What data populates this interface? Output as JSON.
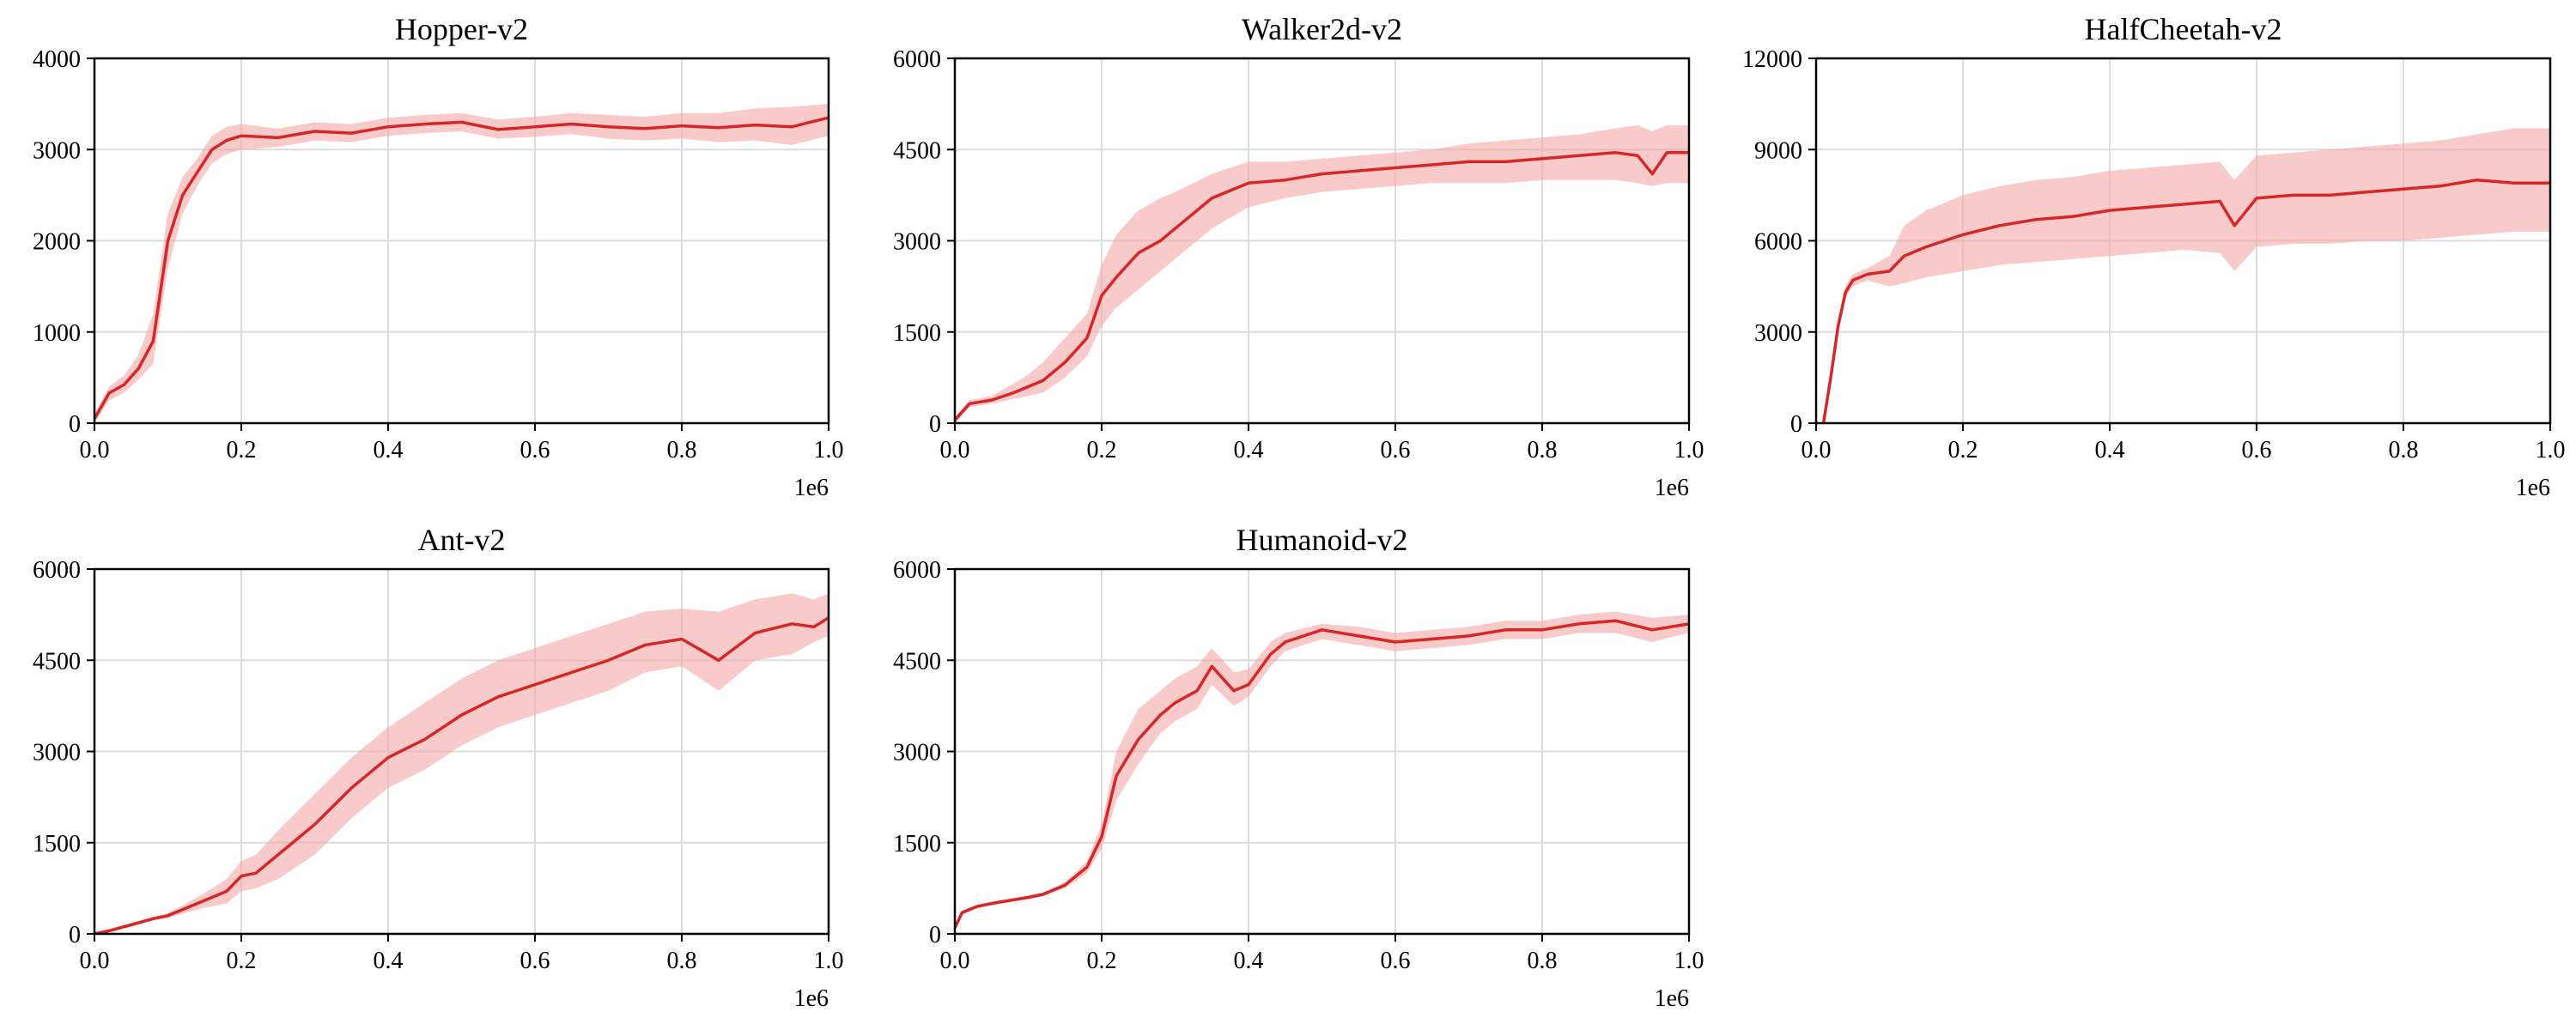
{
  "figure": {
    "line_color": "#d62728",
    "band_color": "#f4a6a6",
    "grid_color": "#dcdcdc"
  },
  "chart_data": [
    {
      "type": "line",
      "title": "Hopper-v2",
      "xlabel": "",
      "ylabel": "",
      "xlim": [
        0,
        1.0
      ],
      "ylim": [
        0,
        4000
      ],
      "xticks": [
        "0.0",
        "0.2",
        "0.4",
        "0.6",
        "0.8",
        "1.0"
      ],
      "yticks": [
        "0",
        "1000",
        "2000",
        "3000",
        "4000"
      ],
      "x_offset_label": "1e6",
      "grid": true,
      "series": [
        {
          "x": [
            0,
            0.02,
            0.04,
            0.06,
            0.08,
            0.1,
            0.12,
            0.14,
            0.16,
            0.18,
            0.2,
            0.25,
            0.3,
            0.35,
            0.4,
            0.45,
            0.5,
            0.55,
            0.6,
            0.65,
            0.7,
            0.75,
            0.8,
            0.85,
            0.9,
            0.95,
            1.0
          ],
          "y": [
            50,
            330,
            420,
            600,
            900,
            2000,
            2500,
            2750,
            3000,
            3100,
            3150,
            3130,
            3200,
            3180,
            3250,
            3280,
            3300,
            3220,
            3250,
            3280,
            3250,
            3230,
            3260,
            3240,
            3270,
            3250,
            3350
          ],
          "lower": [
            0,
            250,
            330,
            480,
            650,
            1700,
            2300,
            2600,
            2850,
            2950,
            3000,
            3030,
            3100,
            3080,
            3150,
            3180,
            3200,
            3120,
            3140,
            3170,
            3120,
            3100,
            3120,
            3080,
            3100,
            3050,
            3150
          ],
          "upper": [
            100,
            400,
            520,
            750,
            1200,
            2300,
            2700,
            2900,
            3150,
            3250,
            3280,
            3230,
            3300,
            3280,
            3350,
            3380,
            3400,
            3330,
            3360,
            3400,
            3380,
            3360,
            3400,
            3400,
            3450,
            3470,
            3500
          ]
        }
      ]
    },
    {
      "type": "line",
      "title": "Walker2d-v2",
      "xlabel": "",
      "ylabel": "",
      "xlim": [
        0,
        1.0
      ],
      "ylim": [
        0,
        6000
      ],
      "xticks": [
        "0.0",
        "0.2",
        "0.4",
        "0.6",
        "0.8",
        "1.0"
      ],
      "yticks": [
        "0",
        "1500",
        "3000",
        "4500",
        "6000"
      ],
      "x_offset_label": "1e6",
      "grid": true,
      "series": [
        {
          "x": [
            0,
            0.02,
            0.05,
            0.08,
            0.1,
            0.12,
            0.15,
            0.18,
            0.2,
            0.22,
            0.25,
            0.28,
            0.3,
            0.35,
            0.4,
            0.45,
            0.5,
            0.55,
            0.6,
            0.65,
            0.7,
            0.75,
            0.8,
            0.85,
            0.9,
            0.93,
            0.95,
            0.97,
            1.0
          ],
          "y": [
            50,
            320,
            380,
            500,
            600,
            700,
            1000,
            1400,
            2100,
            2400,
            2800,
            3000,
            3200,
            3700,
            3950,
            4000,
            4100,
            4150,
            4200,
            4250,
            4300,
            4300,
            4350,
            4400,
            4450,
            4400,
            4100,
            4450,
            4450
          ],
          "lower": [
            0,
            260,
            320,
            400,
            450,
            500,
            750,
            1100,
            1600,
            1900,
            2200,
            2500,
            2700,
            3200,
            3550,
            3700,
            3800,
            3850,
            3900,
            3950,
            3950,
            3950,
            4000,
            4000,
            4000,
            3950,
            3900,
            3950,
            3950
          ],
          "upper": [
            100,
            380,
            450,
            650,
            800,
            1000,
            1400,
            1800,
            2600,
            3100,
            3500,
            3700,
            3800,
            4100,
            4300,
            4300,
            4350,
            4400,
            4450,
            4500,
            4600,
            4650,
            4700,
            4750,
            4850,
            4900,
            4800,
            4900,
            4900
          ]
        }
      ]
    },
    {
      "type": "line",
      "title": "HalfCheetah-v2",
      "xlabel": "",
      "ylabel": "",
      "xlim": [
        0,
        1.0
      ],
      "ylim": [
        0,
        12000
      ],
      "xticks": [
        "0.0",
        "0.2",
        "0.4",
        "0.6",
        "0.8",
        "1.0"
      ],
      "yticks": [
        "0",
        "3000",
        "6000",
        "9000",
        "12000"
      ],
      "x_offset_label": "1e6",
      "grid": true,
      "series": [
        {
          "x": [
            0.01,
            0.02,
            0.03,
            0.04,
            0.05,
            0.07,
            0.1,
            0.12,
            0.15,
            0.2,
            0.25,
            0.3,
            0.35,
            0.4,
            0.45,
            0.5,
            0.55,
            0.57,
            0.6,
            0.65,
            0.7,
            0.75,
            0.8,
            0.85,
            0.9,
            0.95,
            1.0
          ],
          "y": [
            0,
            1500,
            3200,
            4300,
            4700,
            4900,
            5000,
            5500,
            5800,
            6200,
            6500,
            6700,
            6800,
            7000,
            7100,
            7200,
            7300,
            6500,
            7400,
            7500,
            7500,
            7600,
            7700,
            7800,
            8000,
            7900,
            7900
          ],
          "lower": [
            0,
            1300,
            3000,
            4100,
            4500,
            4700,
            4500,
            4600,
            4800,
            5000,
            5200,
            5300,
            5400,
            5500,
            5600,
            5700,
            5600,
            5000,
            5800,
            5900,
            5900,
            6000,
            6000,
            6100,
            6200,
            6300,
            6300
          ],
          "upper": [
            0,
            1700,
            3400,
            4500,
            4900,
            5100,
            5500,
            6500,
            7000,
            7500,
            7800,
            8000,
            8100,
            8300,
            8400,
            8500,
            8600,
            8000,
            8800,
            8900,
            9000,
            9100,
            9200,
            9300,
            9500,
            9700,
            9700
          ]
        }
      ]
    },
    {
      "type": "line",
      "title": "Ant-v2",
      "xlabel": "",
      "ylabel": "",
      "xlim": [
        0,
        1.0
      ],
      "ylim": [
        0,
        6000
      ],
      "xticks": [
        "0.0",
        "0.2",
        "0.4",
        "0.6",
        "0.8",
        "1.0"
      ],
      "yticks": [
        "0",
        "1500",
        "3000",
        "4500",
        "6000"
      ],
      "x_offset_label": "1e6",
      "grid": true,
      "series": [
        {
          "x": [
            0,
            0.02,
            0.05,
            0.08,
            0.1,
            0.12,
            0.15,
            0.18,
            0.2,
            0.22,
            0.25,
            0.3,
            0.35,
            0.4,
            0.45,
            0.5,
            0.55,
            0.6,
            0.65,
            0.7,
            0.75,
            0.8,
            0.85,
            0.9,
            0.95,
            0.98,
            1.0
          ],
          "y": [
            0,
            50,
            150,
            250,
            300,
            400,
            550,
            700,
            950,
            1000,
            1300,
            1800,
            2400,
            2900,
            3200,
            3600,
            3900,
            4100,
            4300,
            4500,
            4750,
            4850,
            4500,
            4950,
            5100,
            5050,
            5200
          ],
          "lower": [
            0,
            30,
            120,
            220,
            260,
            330,
            430,
            500,
            700,
            750,
            900,
            1300,
            1900,
            2400,
            2700,
            3100,
            3400,
            3600,
            3800,
            4000,
            4300,
            4400,
            4000,
            4500,
            4600,
            4800,
            4900
          ],
          "upper": [
            30,
            80,
            180,
            280,
            340,
            470,
            670,
            900,
            1200,
            1300,
            1700,
            2300,
            2900,
            3400,
            3800,
            4200,
            4500,
            4700,
            4900,
            5100,
            5300,
            5350,
            5300,
            5500,
            5600,
            5500,
            5600
          ]
        }
      ]
    },
    {
      "type": "line",
      "title": "Humanoid-v2",
      "xlabel": "",
      "ylabel": "",
      "xlim": [
        0,
        1.0
      ],
      "ylim": [
        0,
        6000
      ],
      "xticks": [
        "0.0",
        "0.2",
        "0.4",
        "0.6",
        "0.8",
        "1.0"
      ],
      "yticks": [
        "0",
        "1500",
        "3000",
        "4500",
        "6000"
      ],
      "x_offset_label": "1e6",
      "grid": true,
      "series": [
        {
          "x": [
            0,
            0.01,
            0.03,
            0.05,
            0.08,
            0.1,
            0.12,
            0.15,
            0.18,
            0.2,
            0.22,
            0.25,
            0.28,
            0.3,
            0.33,
            0.35,
            0.38,
            0.4,
            0.43,
            0.45,
            0.5,
            0.55,
            0.6,
            0.65,
            0.7,
            0.75,
            0.8,
            0.85,
            0.9,
            0.95,
            1.0
          ],
          "y": [
            100,
            350,
            450,
            500,
            560,
            600,
            650,
            800,
            1100,
            1600,
            2600,
            3200,
            3600,
            3800,
            4000,
            4400,
            4000,
            4100,
            4600,
            4800,
            5000,
            4900,
            4800,
            4850,
            4900,
            5000,
            5000,
            5100,
            5150,
            5000,
            5100
          ],
          "lower": [
            60,
            320,
            420,
            470,
            530,
            570,
            620,
            750,
            1000,
            1400,
            2200,
            2800,
            3300,
            3500,
            3700,
            4100,
            3750,
            3900,
            4400,
            4650,
            4850,
            4750,
            4650,
            4700,
            4750,
            4850,
            4850,
            4950,
            4950,
            4800,
            4950
          ],
          "upper": [
            140,
            380,
            480,
            530,
            590,
            630,
            680,
            850,
            1200,
            1800,
            3000,
            3700,
            4000,
            4200,
            4400,
            4700,
            4300,
            4350,
            4800,
            4950,
            5100,
            5050,
            4950,
            5000,
            5050,
            5150,
            5150,
            5250,
            5300,
            5200,
            5250
          ]
        }
      ]
    }
  ]
}
